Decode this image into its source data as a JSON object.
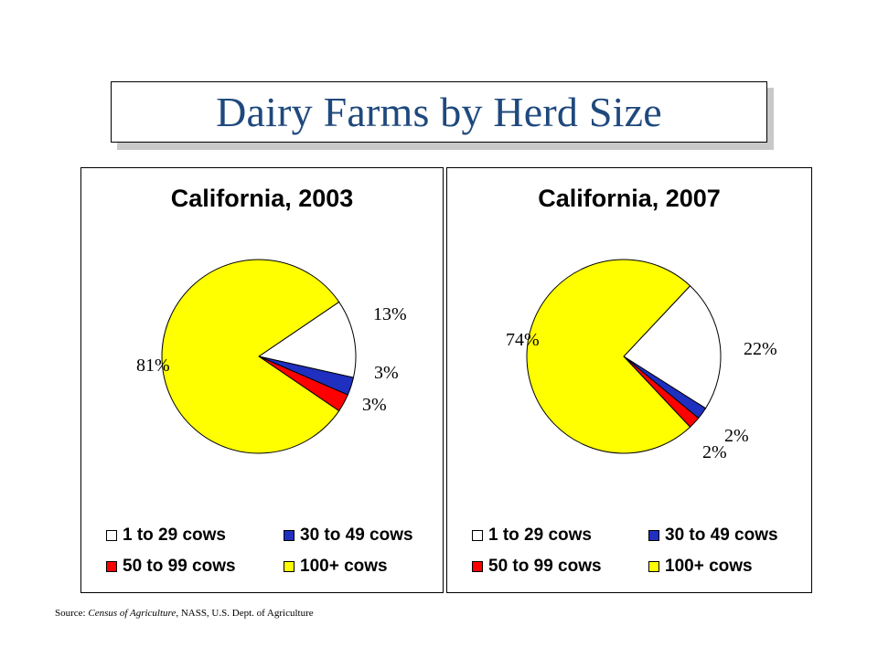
{
  "title": "Dairy Farms by Herd Size",
  "source": {
    "prefix": "Source: ",
    "publication": "Census of Agriculture",
    "suffix": ", NASS,  U.S.  Dept.  of Agriculture"
  },
  "legend_labels": [
    "1 to 29 cows",
    "30 to 49 cows",
    "50 to 99 cows",
    "100+ cows"
  ],
  "colors": {
    "1 to 29 cows": "#ffffff",
    "30 to 49 cows": "#1f2fbf",
    "50 to 99 cows": "#ff0000",
    "100+ cows": "#ffff00",
    "title": "#1f497d"
  },
  "chart_data": [
    {
      "type": "pie",
      "title": "California, 2003",
      "categories": [
        "1 to 29 cows",
        "30 to 49 cows",
        "50 to 99 cows",
        "100+ cows"
      ],
      "values": [
        13,
        3,
        3,
        81
      ],
      "labels": [
        "13%",
        "3%",
        "3%",
        "81%"
      ],
      "legend_position": "bottom"
    },
    {
      "type": "pie",
      "title": "California, 2007",
      "categories": [
        "1 to 29 cows",
        "30 to 49 cows",
        "50 to 99 cows",
        "100+ cows"
      ],
      "values": [
        22,
        2,
        2,
        74
      ],
      "labels": [
        "22%",
        "2%",
        "2%",
        "74%"
      ],
      "legend_position": "bottom"
    }
  ]
}
